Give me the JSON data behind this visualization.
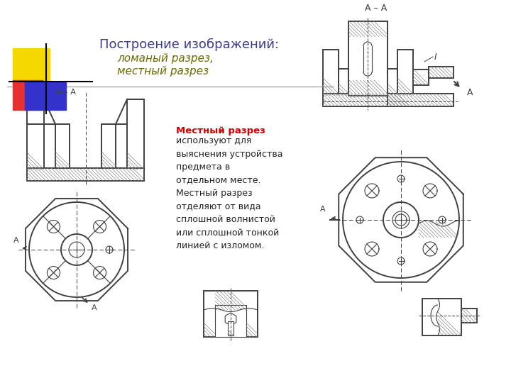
{
  "title_line1": "Построение изображений:",
  "title_line2": "ломаный разрез,",
  "title_line3": "местный разрез",
  "title_color": "#3c3c8c",
  "subtitle_color": "#6b6b00",
  "red_text": "Местный разрез",
  "red_color": "#cc0000",
  "body_text": "используют для\nвыяснения устройства\nпредмета в\nотдельном месте.\nМестный разрез\nотделяют от вида\nсплошной волнистой\nили сплошной тонкой\nлинией с изломом.",
  "bg_color": "#ffffff",
  "dc": "#404040",
  "hc": "#707070"
}
